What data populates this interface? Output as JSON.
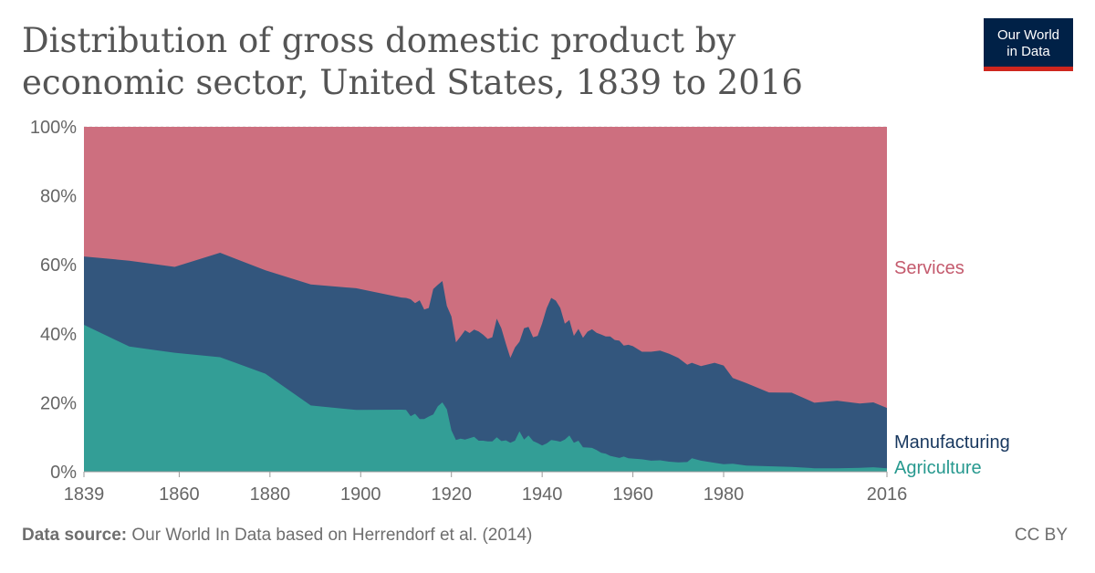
{
  "header": {
    "title": "Distribution of gross domestic product by economic sector, United States, 1839 to 2016",
    "logo_line1": "Our World",
    "logo_line2": "in Data"
  },
  "footer": {
    "source_label": "Data source:",
    "source_text": "Our World In Data based on Herrendorf et al. (2014)",
    "license": "CC BY"
  },
  "colors": {
    "services": "#cd6f7f",
    "manufacturing": "#33567d",
    "agriculture": "#339e96",
    "manufacturing_label": "#17375e",
    "agriculture_label": "#27998f",
    "services_label": "#c45a6d"
  },
  "chart_data": {
    "type": "area",
    "stacked": true,
    "percent": true,
    "title": "Distribution of gross domestic product by economic sector, United States, 1839 to 2016",
    "xlabel": "",
    "ylabel": "",
    "xlim": [
      1839,
      2016
    ],
    "ylim": [
      0,
      100
    ],
    "y_ticks": [
      0,
      20,
      40,
      60,
      80,
      100
    ],
    "y_tick_labels": [
      "0%",
      "20%",
      "40%",
      "60%",
      "80%",
      "100%"
    ],
    "x_ticks": [
      1839,
      1860,
      1880,
      1900,
      1920,
      1940,
      1960,
      1980,
      2016
    ],
    "x_tick_labels": [
      "1839",
      "1860",
      "1880",
      "1900",
      "1920",
      "1940",
      "1960",
      "1980",
      "2016"
    ],
    "grid": "horizontal-dashed",
    "series": [
      {
        "name": "Agriculture",
        "label": "Agriculture",
        "points": [
          [
            1839,
            42.6
          ],
          [
            1849,
            36.3
          ],
          [
            1859,
            34.5
          ],
          [
            1869,
            33.2
          ],
          [
            1879,
            28.4
          ],
          [
            1889,
            19.2
          ],
          [
            1899,
            17.9
          ],
          [
            1909,
            18.0
          ],
          [
            1910,
            17.9
          ],
          [
            1911,
            16.1
          ],
          [
            1912,
            16.8
          ],
          [
            1913,
            15.3
          ],
          [
            1914,
            15.3
          ],
          [
            1915,
            16.0
          ],
          [
            1916,
            16.6
          ],
          [
            1917,
            19.0
          ],
          [
            1918,
            20.1
          ],
          [
            1919,
            18.1
          ],
          [
            1920,
            12.0
          ],
          [
            1921,
            9.2
          ],
          [
            1922,
            9.6
          ],
          [
            1923,
            9.3
          ],
          [
            1924,
            9.7
          ],
          [
            1925,
            10.1
          ],
          [
            1926,
            9.0
          ],
          [
            1927,
            9.0
          ],
          [
            1928,
            8.8
          ],
          [
            1929,
            8.8
          ],
          [
            1930,
            10.0
          ],
          [
            1931,
            8.9
          ],
          [
            1932,
            9.1
          ],
          [
            1933,
            8.4
          ],
          [
            1934,
            9.0
          ],
          [
            1935,
            11.7
          ],
          [
            1936,
            9.3
          ],
          [
            1937,
            10.5
          ],
          [
            1938,
            8.9
          ],
          [
            1939,
            8.3
          ],
          [
            1940,
            7.6
          ],
          [
            1941,
            8.2
          ],
          [
            1942,
            9.2
          ],
          [
            1943,
            9.0
          ],
          [
            1944,
            8.7
          ],
          [
            1945,
            9.3
          ],
          [
            1946,
            10.5
          ],
          [
            1947,
            8.4
          ],
          [
            1948,
            9.0
          ],
          [
            1949,
            7.1
          ],
          [
            1950,
            7.0
          ],
          [
            1951,
            6.9
          ],
          [
            1952,
            6.3
          ],
          [
            1953,
            5.5
          ],
          [
            1954,
            5.2
          ],
          [
            1955,
            4.6
          ],
          [
            1956,
            4.3
          ],
          [
            1957,
            4.0
          ],
          [
            1958,
            4.4
          ],
          [
            1959,
            3.9
          ],
          [
            1960,
            3.8
          ],
          [
            1962,
            3.6
          ],
          [
            1964,
            3.2
          ],
          [
            1966,
            3.3
          ],
          [
            1968,
            2.9
          ],
          [
            1970,
            2.7
          ],
          [
            1972,
            2.8
          ],
          [
            1973,
            3.9
          ],
          [
            1975,
            3.2
          ],
          [
            1978,
            2.6
          ],
          [
            1980,
            2.2
          ],
          [
            1982,
            2.3
          ],
          [
            1985,
            1.8
          ],
          [
            1990,
            1.6
          ],
          [
            1995,
            1.4
          ],
          [
            2000,
            1.0
          ],
          [
            2005,
            1.0
          ],
          [
            2010,
            1.1
          ],
          [
            2013,
            1.3
          ],
          [
            2016,
            1.0
          ]
        ]
      },
      {
        "name": "Manufacturing",
        "label": "Manufacturing",
        "points": [
          [
            1839,
            19.8
          ],
          [
            1849,
            24.9
          ],
          [
            1859,
            24.9
          ],
          [
            1869,
            30.3
          ],
          [
            1879,
            30.0
          ],
          [
            1889,
            35.1
          ],
          [
            1899,
            35.3
          ],
          [
            1909,
            32.5
          ],
          [
            1910,
            32.5
          ],
          [
            1911,
            33.9
          ],
          [
            1912,
            32.1
          ],
          [
            1913,
            34.4
          ],
          [
            1914,
            31.7
          ],
          [
            1915,
            31.5
          ],
          [
            1916,
            36.4
          ],
          [
            1917,
            35.2
          ],
          [
            1918,
            35.2
          ],
          [
            1919,
            30.0
          ],
          [
            1920,
            33.0
          ],
          [
            1921,
            28.3
          ],
          [
            1922,
            29.6
          ],
          [
            1923,
            31.7
          ],
          [
            1924,
            30.5
          ],
          [
            1925,
            31.1
          ],
          [
            1926,
            31.7
          ],
          [
            1927,
            30.7
          ],
          [
            1928,
            29.7
          ],
          [
            1929,
            30.2
          ],
          [
            1930,
            34.4
          ],
          [
            1931,
            32.7
          ],
          [
            1932,
            28.0
          ],
          [
            1933,
            24.6
          ],
          [
            1934,
            27.0
          ],
          [
            1935,
            26.0
          ],
          [
            1936,
            32.3
          ],
          [
            1937,
            31.5
          ],
          [
            1938,
            30.1
          ],
          [
            1939,
            31.1
          ],
          [
            1940,
            35.4
          ],
          [
            1941,
            39.2
          ],
          [
            1942,
            41.2
          ],
          [
            1943,
            40.6
          ],
          [
            1944,
            38.8
          ],
          [
            1945,
            33.6
          ],
          [
            1946,
            33.5
          ],
          [
            1947,
            31.0
          ],
          [
            1948,
            32.4
          ],
          [
            1949,
            31.7
          ],
          [
            1950,
            33.6
          ],
          [
            1951,
            34.4
          ],
          [
            1952,
            34.0
          ],
          [
            1953,
            34.3
          ],
          [
            1954,
            34.0
          ],
          [
            1955,
            34.6
          ],
          [
            1956,
            33.9
          ],
          [
            1957,
            34.0
          ],
          [
            1958,
            32.2
          ],
          [
            1959,
            32.9
          ],
          [
            1960,
            32.6
          ],
          [
            1962,
            31.2
          ],
          [
            1964,
            31.6
          ],
          [
            1966,
            31.8
          ],
          [
            1968,
            31.3
          ],
          [
            1970,
            30.3
          ],
          [
            1972,
            28.2
          ],
          [
            1973,
            27.7
          ],
          [
            1975,
            27.4
          ],
          [
            1978,
            29.0
          ],
          [
            1980,
            28.6
          ],
          [
            1982,
            24.9
          ],
          [
            1985,
            23.9
          ],
          [
            1990,
            21.4
          ],
          [
            1995,
            21.5
          ],
          [
            2000,
            19.0
          ],
          [
            2005,
            19.6
          ],
          [
            2010,
            18.7
          ],
          [
            2013,
            18.8
          ],
          [
            2016,
            17.5
          ]
        ]
      },
      {
        "name": "Services",
        "label": "Services",
        "fills_to": 100
      }
    ]
  }
}
